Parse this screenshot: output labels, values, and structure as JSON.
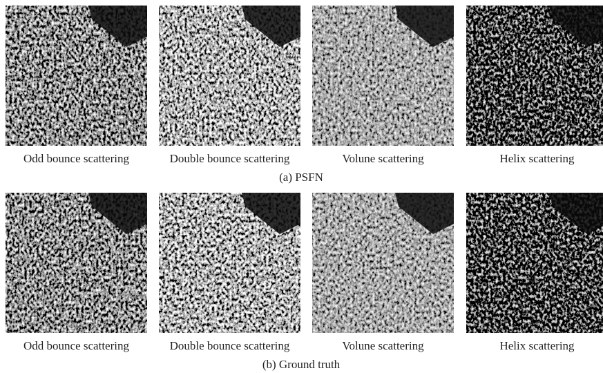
{
  "rows": [
    {
      "caption": "(a) PSFN",
      "panels": [
        "Odd bounce scattering",
        "Double bounce scattering",
        "Volune scattering",
        "Helix scattering"
      ]
    },
    {
      "caption": "(b) Ground truth",
      "panels": [
        "Odd bounce scattering",
        "Double bounce scattering",
        "Volune scattering",
        "Helix scattering"
      ]
    }
  ]
}
